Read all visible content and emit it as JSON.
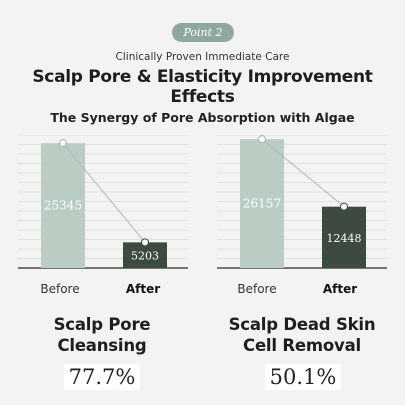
{
  "header": {
    "badge": "Point 2",
    "subtitle": "Clinically Proven Immediate Care",
    "headline": "Scalp Pore & Elasticity Improvement Effects",
    "section_title": "The Synergy of Pore Absorption with Algae"
  },
  "colors": {
    "background": "#f3f4f1",
    "before_bar": "#b9cdc3",
    "after_bar": "#3c4a3f",
    "badge": "#8fa89e",
    "connector": "#b0bcb6"
  },
  "chart_data": [
    {
      "type": "bar",
      "categories": [
        "Before",
        "After"
      ],
      "values": [
        25345,
        5203
      ],
      "value_labels": [
        "25345",
        "5203"
      ],
      "title": "Scalp Pore Cleansing",
      "result": "77.7%",
      "ylim": [
        0,
        27000
      ],
      "grid": true
    },
    {
      "type": "bar",
      "categories": [
        "Before",
        "After"
      ],
      "values": [
        26157,
        12448
      ],
      "value_labels": [
        "26157",
        "12448"
      ],
      "title": "Scalp Dead Skin Cell Removal",
      "result": "50.1%",
      "ylim": [
        0,
        27000
      ],
      "grid": true
    }
  ],
  "metrics": [
    {
      "title_line1": "Scalp Pore",
      "title_line2": "Cleansing",
      "value": "77.7%"
    },
    {
      "title_line1": "Scalp Dead Skin",
      "title_line2": "Cell Removal",
      "value": "50.1%"
    }
  ]
}
